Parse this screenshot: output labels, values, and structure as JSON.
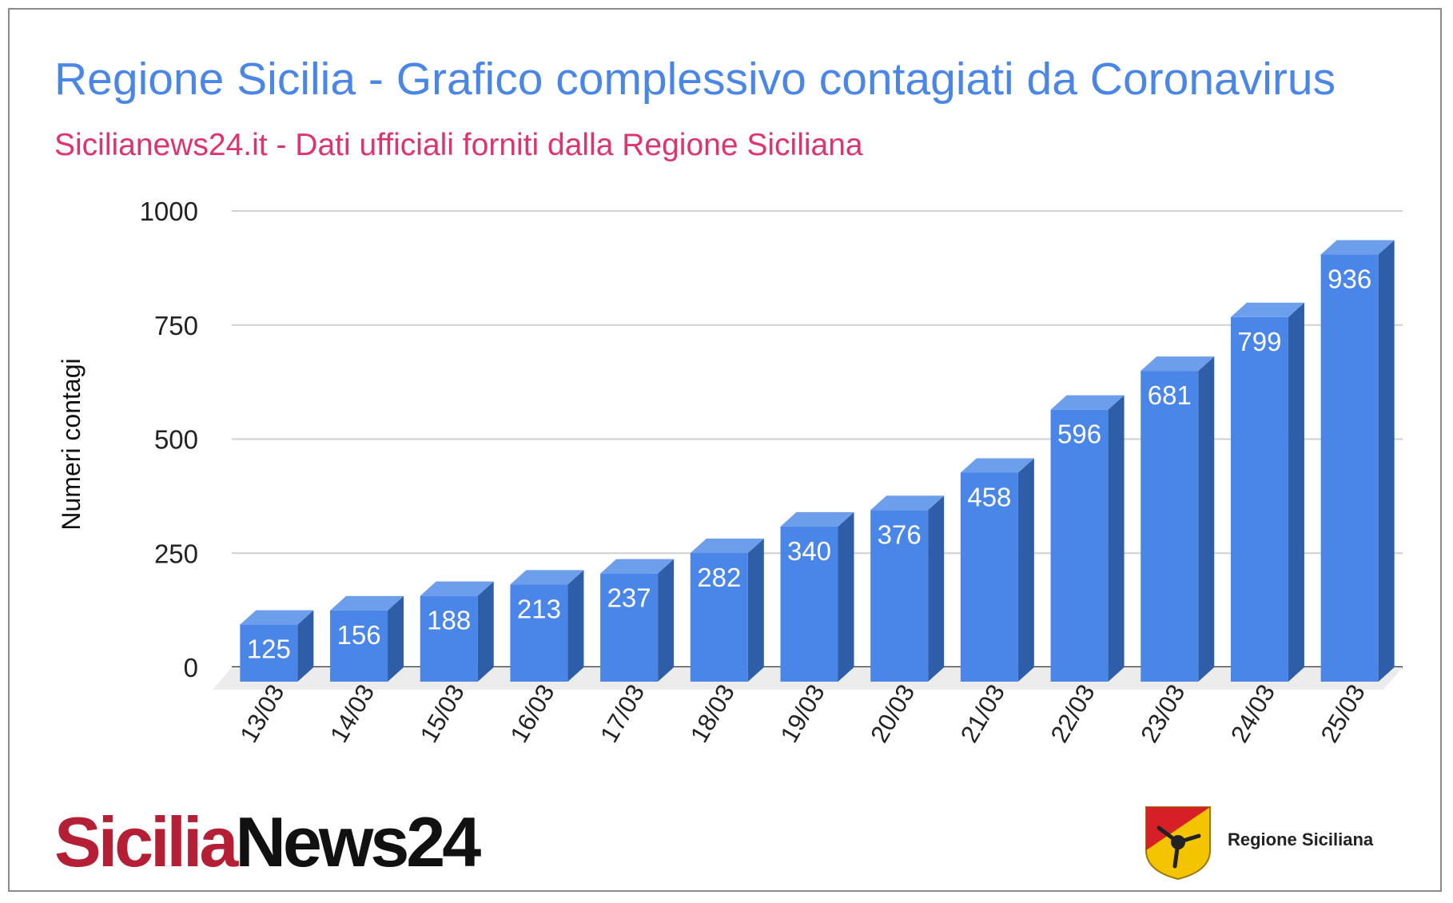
{
  "header": {
    "title": "Regione Sicilia - Grafico complessivo contagiati da Coronavirus",
    "subtitle": "Sicilianews24.it - Dati ufficiali forniti dalla Regione Siciliana"
  },
  "chart_data": {
    "type": "bar",
    "title": "Regione Sicilia - Grafico complessivo contagiati da Coronavirus",
    "subtitle": "Sicilianews24.it - Dati ufficiali forniti dalla Regione Siciliana",
    "xlabel": "",
    "ylabel": "Numeri contagi",
    "categories": [
      "13/03",
      "14/03",
      "15/03",
      "16/03",
      "17/03",
      "18/03",
      "19/03",
      "20/03",
      "21/03",
      "22/03",
      "23/03",
      "24/03",
      "25/03"
    ],
    "values": [
      125,
      156,
      188,
      213,
      237,
      282,
      340,
      376,
      458,
      596,
      681,
      799,
      936
    ],
    "ylim": [
      0,
      1000
    ],
    "yticks": [
      0,
      250,
      500,
      750,
      1000
    ],
    "grid": true,
    "data_labels": true,
    "style": "3d-bar",
    "colors": {
      "bar_front": "#4a86e8",
      "bar_top": "#6d9eeb",
      "bar_side": "#2f5ea8",
      "label": "#ffffff",
      "grid": "#d0d0d0"
    }
  },
  "footer": {
    "logo_left_red": "Sicilia",
    "logo_left_black": "News24",
    "logo_right_text": "Regione Siciliana",
    "logo_right_icon": "trinacria-coat-of-arms-icon"
  }
}
